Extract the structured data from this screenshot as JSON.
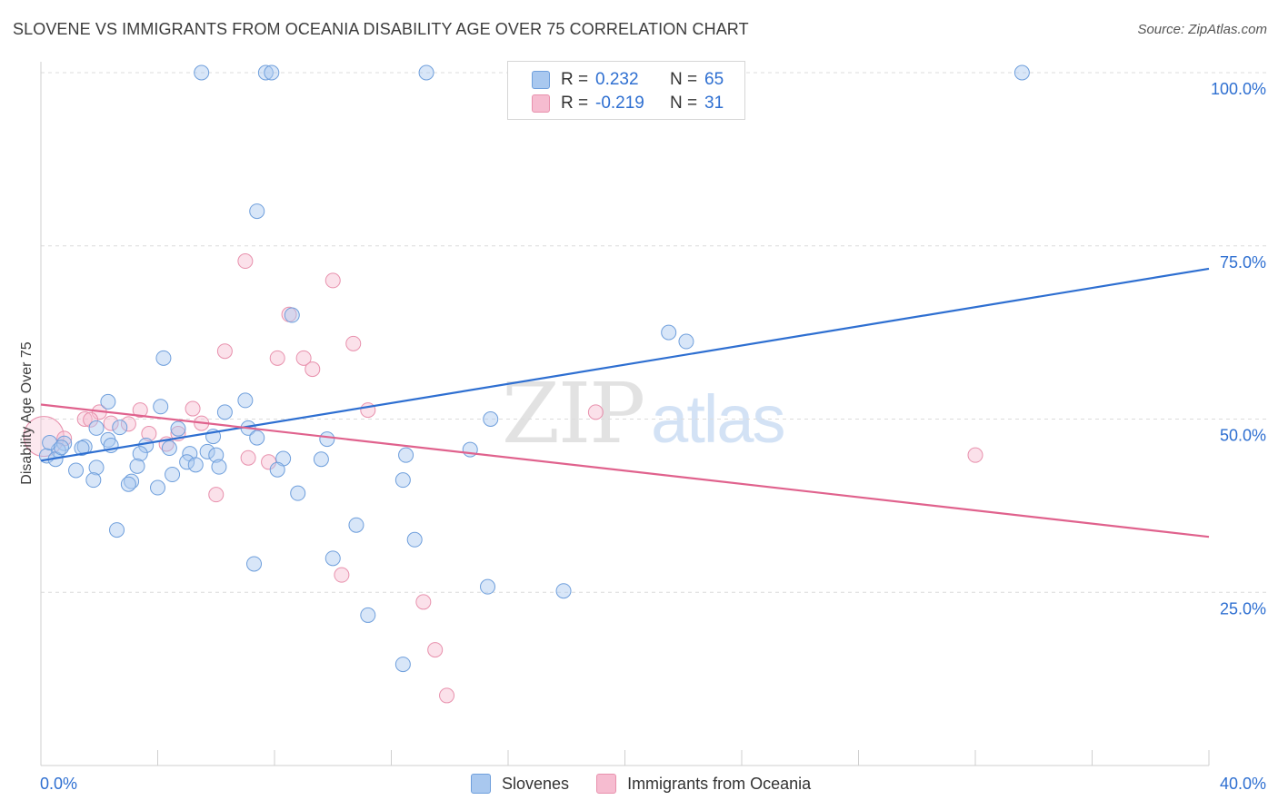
{
  "header": {
    "title": "SLOVENE VS IMMIGRANTS FROM OCEANIA DISABILITY AGE OVER 75 CORRELATION CHART",
    "source": "Source: ZipAtlas.com"
  },
  "watermark": {
    "zip": "ZIP",
    "atlas": "atlas"
  },
  "legend": {
    "rows": [
      {
        "r_label": "R =",
        "r_value": "0.232",
        "n_label": "N =",
        "n_value": "65"
      },
      {
        "r_label": "R =",
        "r_value": "-0.219",
        "n_label": "N =",
        "n_value": "31"
      }
    ]
  },
  "bottom_legend": {
    "series1": "Slovenes",
    "series2": "Immigrants from Oceania"
  },
  "colors": {
    "blue_fill": "#a9c8ef",
    "blue_stroke": "#6f9fdc",
    "blue_line": "#2e6fd1",
    "pink_fill": "#f6bcd0",
    "pink_stroke": "#e891ad",
    "pink_line": "#e0628d",
    "grid": "#dcdcdc",
    "tick_label": "#2e6fd1"
  },
  "chart_data": {
    "type": "scatter",
    "title": "SLOVENE VS IMMIGRANTS FROM OCEANIA DISABILITY AGE OVER 75 CORRELATION CHART",
    "xlabel": "",
    "ylabel": "Disability Age Over 75",
    "xlim": [
      0,
      40
    ],
    "ylim": [
      0,
      100
    ],
    "x_tick_labels": [
      "0.0%",
      "40.0%"
    ],
    "y_ticks": [
      25,
      50,
      75,
      100
    ],
    "y_tick_labels": [
      "25.0%",
      "50.0%",
      "75.0%",
      "100.0%"
    ],
    "grid": true,
    "legend_position": "top-center",
    "series": [
      {
        "name": "Slovenes",
        "color": "#a9c8ef",
        "R": 0.232,
        "N": 65,
        "trend": {
          "x": [
            0,
            40
          ],
          "y": [
            44.0,
            71.7
          ]
        },
        "points": [
          [
            5.5,
            100
          ],
          [
            7.7,
            100
          ],
          [
            7.9,
            100
          ],
          [
            13.2,
            100
          ],
          [
            33.6,
            100
          ],
          [
            7.4,
            80.0
          ],
          [
            8.6,
            65.0
          ],
          [
            21.5,
            62.5
          ],
          [
            22.1,
            61.2
          ],
          [
            4.2,
            58.8
          ],
          [
            2.3,
            52.5
          ],
          [
            7.0,
            52.7
          ],
          [
            4.1,
            51.8
          ],
          [
            6.3,
            51.0
          ],
          [
            15.4,
            50.0
          ],
          [
            2.7,
            48.8
          ],
          [
            1.9,
            48.7
          ],
          [
            4.7,
            48.6
          ],
          [
            7.1,
            48.7
          ],
          [
            5.9,
            47.5
          ],
          [
            7.4,
            47.3
          ],
          [
            0.8,
            46.5
          ],
          [
            1.5,
            46.0
          ],
          [
            9.8,
            47.1
          ],
          [
            2.3,
            47.0
          ],
          [
            3.6,
            46.2
          ],
          [
            4.4,
            45.8
          ],
          [
            5.7,
            45.3
          ],
          [
            0.6,
            45.5
          ],
          [
            1.4,
            45.8
          ],
          [
            3.4,
            45.0
          ],
          [
            5.1,
            45.0
          ],
          [
            6.0,
            44.8
          ],
          [
            0.2,
            44.7
          ],
          [
            12.5,
            44.8
          ],
          [
            14.7,
            45.6
          ],
          [
            0.5,
            44.2
          ],
          [
            8.3,
            44.3
          ],
          [
            9.6,
            44.2
          ],
          [
            5.0,
            43.8
          ],
          [
            5.3,
            43.4
          ],
          [
            3.3,
            43.2
          ],
          [
            1.9,
            43.0
          ],
          [
            6.1,
            43.1
          ],
          [
            1.2,
            42.6
          ],
          [
            8.1,
            42.7
          ],
          [
            4.5,
            42.0
          ],
          [
            12.4,
            41.2
          ],
          [
            1.8,
            41.2
          ],
          [
            3.1,
            41.0
          ],
          [
            3.0,
            40.6
          ],
          [
            4.0,
            40.1
          ],
          [
            8.8,
            39.3
          ],
          [
            2.6,
            34.0
          ],
          [
            10.8,
            34.7
          ],
          [
            12.8,
            32.6
          ],
          [
            10.0,
            29.9
          ],
          [
            7.3,
            29.1
          ],
          [
            15.3,
            25.8
          ],
          [
            17.9,
            25.2
          ],
          [
            11.2,
            21.7
          ],
          [
            12.4,
            14.6
          ],
          [
            0.3,
            46.6
          ],
          [
            0.7,
            45.9
          ],
          [
            2.4,
            46.2
          ]
        ]
      },
      {
        "name": "Immigrants from Oceania",
        "color": "#f6bcd0",
        "R": -0.219,
        "N": 31,
        "trend": {
          "x": [
            0,
            40
          ],
          "y": [
            52.1,
            33.0
          ]
        },
        "points": [
          [
            0.1,
            47.5
          ],
          [
            7.0,
            72.8
          ],
          [
            10.0,
            70.0
          ],
          [
            8.5,
            65.1
          ],
          [
            6.3,
            59.8
          ],
          [
            10.7,
            60.9
          ],
          [
            8.1,
            58.8
          ],
          [
            9.0,
            58.8
          ],
          [
            9.3,
            57.2
          ],
          [
            3.4,
            51.3
          ],
          [
            5.2,
            51.5
          ],
          [
            11.2,
            51.3
          ],
          [
            19.0,
            51.0
          ],
          [
            2.0,
            51.0
          ],
          [
            1.5,
            50.0
          ],
          [
            2.4,
            49.4
          ],
          [
            1.7,
            49.9
          ],
          [
            3.0,
            49.3
          ],
          [
            5.5,
            49.4
          ],
          [
            3.7,
            47.9
          ],
          [
            4.7,
            47.9
          ],
          [
            0.8,
            47.2
          ],
          [
            4.3,
            46.4
          ],
          [
            7.1,
            44.4
          ],
          [
            7.8,
            43.8
          ],
          [
            6.0,
            39.1
          ],
          [
            32.0,
            44.8
          ],
          [
            10.3,
            27.5
          ],
          [
            13.1,
            23.6
          ],
          [
            13.5,
            16.7
          ],
          [
            13.9,
            10.1
          ]
        ]
      }
    ]
  }
}
